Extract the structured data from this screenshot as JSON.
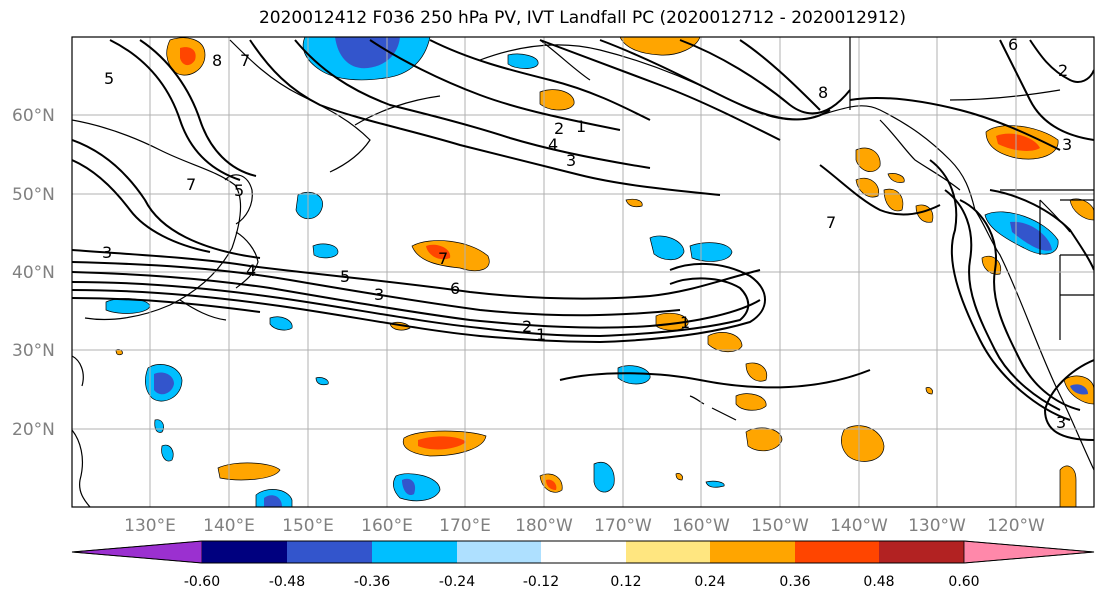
{
  "title": "2020012412 F036 250 hPa PV, IVT Landfall PC (2020012712 - 2020012912)",
  "map": {
    "lat_labels": [
      "60°N",
      "50°N",
      "40°N",
      "30°N",
      "20°N"
    ],
    "lon_labels": [
      "130°E",
      "140°E",
      "150°E",
      "160°E",
      "170°E",
      "180°W",
      "170°W",
      "160°W",
      "150°W",
      "140°W",
      "130°W",
      "120°W"
    ],
    "contour_labels": [
      "1",
      "2",
      "3",
      "4",
      "5",
      "6",
      "7",
      "8"
    ]
  },
  "colorbar": {
    "ticks": [
      "-0.60",
      "-0.48",
      "-0.36",
      "-0.24",
      "-0.12",
      "0.12",
      "0.24",
      "0.36",
      "0.48",
      "0.60"
    ],
    "colors": [
      "#9b30d0",
      "#00007f",
      "#3355cc",
      "#00bfff",
      "#aee0ff",
      "#ffffff",
      "#ffe680",
      "#ffa500",
      "#ff4500",
      "#b22222",
      "#ff88aa"
    ]
  }
}
